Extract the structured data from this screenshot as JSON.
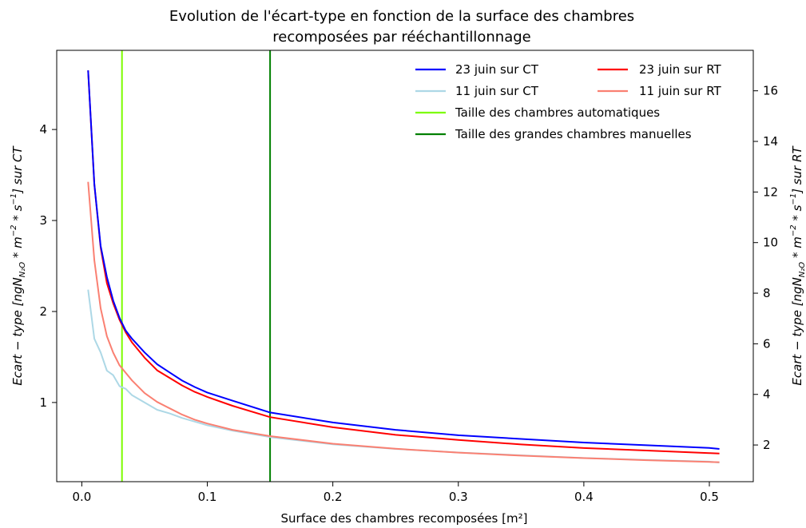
{
  "chart_data": {
    "type": "line",
    "title_line1": "Evolution de l'écart-type en fonction de la surface des chambres",
    "title_line2": "recomposées par rééchantillonnage",
    "xlabel": "Surface des chambres recomposées [m²]",
    "ylabel_left": "Ecart − type [ngN_N₂O * m⁻² * s⁻¹] sur CT",
    "ylabel_right": "Ecart − type [ngN_N₂O * m⁻² * s⁻¹] sur RT",
    "xlim": [
      -0.02,
      0.535
    ],
    "ylim_left": [
      0.13,
      4.87
    ],
    "ylim_right": [
      0.55,
      17.6
    ],
    "xticks": [
      "0.0",
      "0.1",
      "0.2",
      "0.3",
      "0.4",
      "0.5"
    ],
    "xtick_values": [
      0,
      0.1,
      0.2,
      0.3,
      0.4,
      0.5
    ],
    "yticks_left": [
      "1",
      "2",
      "3",
      "4"
    ],
    "ytick_values_left": [
      1,
      2,
      3,
      4
    ],
    "yticks_right": [
      "2",
      "4",
      "6",
      "8",
      "10",
      "12",
      "14",
      "16"
    ],
    "ytick_values_right": [
      2,
      4,
      6,
      8,
      10,
      12,
      14,
      16
    ],
    "grid": false,
    "legend_position": "top-right",
    "series": [
      {
        "name": "23 juin sur CT",
        "axis": "left",
        "color": "#0000ff",
        "x": [
          0.005,
          0.01,
          0.015,
          0.02,
          0.025,
          0.03,
          0.035,
          0.04,
          0.05,
          0.06,
          0.07,
          0.08,
          0.09,
          0.1,
          0.12,
          0.15,
          0.2,
          0.25,
          0.3,
          0.35,
          0.4,
          0.45,
          0.5,
          0.508
        ],
        "y": [
          4.65,
          3.4,
          2.72,
          2.38,
          2.12,
          1.93,
          1.79,
          1.7,
          1.55,
          1.42,
          1.33,
          1.24,
          1.17,
          1.11,
          1.02,
          0.89,
          0.78,
          0.7,
          0.64,
          0.6,
          0.56,
          0.53,
          0.5,
          0.49
        ]
      },
      {
        "name": "11 juin sur CT",
        "axis": "left",
        "color": "#add8e6",
        "x": [
          0.005,
          0.01,
          0.015,
          0.02,
          0.025,
          0.03,
          0.035,
          0.04,
          0.05,
          0.06,
          0.07,
          0.08,
          0.09,
          0.1,
          0.12,
          0.15,
          0.2,
          0.25,
          0.3,
          0.35,
          0.4,
          0.45,
          0.5,
          0.508
        ],
        "y": [
          2.24,
          1.7,
          1.55,
          1.35,
          1.3,
          1.18,
          1.15,
          1.08,
          1.0,
          0.92,
          0.88,
          0.83,
          0.79,
          0.75,
          0.69,
          0.62,
          0.54,
          0.49,
          0.45,
          0.42,
          0.39,
          0.37,
          0.35,
          0.34
        ]
      },
      {
        "name": "23 juin sur RT",
        "axis": "right",
        "color": "#ff0000",
        "x": [
          0.005,
          0.01,
          0.015,
          0.02,
          0.025,
          0.03,
          0.035,
          0.04,
          0.05,
          0.06,
          0.07,
          0.08,
          0.09,
          0.1,
          0.12,
          0.15,
          0.2,
          0.25,
          0.3,
          0.35,
          0.4,
          0.45,
          0.5,
          0.508
        ],
        "y": [
          16.8,
          12.3,
          9.8,
          8.4,
          7.6,
          6.95,
          6.45,
          6.05,
          5.45,
          4.95,
          4.65,
          4.35,
          4.1,
          3.9,
          3.55,
          3.1,
          2.7,
          2.4,
          2.2,
          2.02,
          1.88,
          1.78,
          1.68,
          1.66
        ]
      },
      {
        "name": "11 juin sur RT",
        "axis": "right",
        "color": "#fa8072",
        "x": [
          0.005,
          0.01,
          0.015,
          0.02,
          0.025,
          0.03,
          0.035,
          0.04,
          0.05,
          0.06,
          0.07,
          0.08,
          0.09,
          0.1,
          0.12,
          0.15,
          0.2,
          0.25,
          0.3,
          0.35,
          0.4,
          0.45,
          0.5,
          0.508
        ],
        "y": [
          12.4,
          9.3,
          7.4,
          6.3,
          5.65,
          5.15,
          4.85,
          4.55,
          4.05,
          3.7,
          3.45,
          3.2,
          3.0,
          2.85,
          2.6,
          2.35,
          2.05,
          1.85,
          1.7,
          1.58,
          1.48,
          1.4,
          1.33,
          1.32
        ]
      }
    ],
    "vlines": [
      {
        "name": "Taille des chambres automatiques",
        "x": 0.032,
        "color": "#7cfc00"
      },
      {
        "name": "Taille des grandes chambres manuelles",
        "x": 0.15,
        "color": "#008000"
      }
    ]
  }
}
